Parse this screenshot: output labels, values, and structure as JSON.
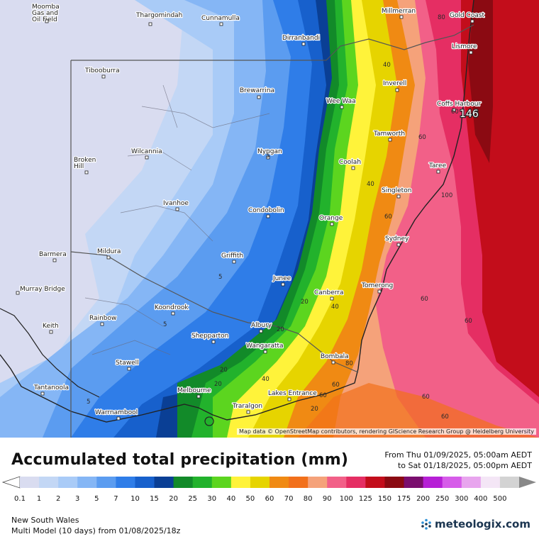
{
  "legend": {
    "title": "Accumulated total precipitation (mm)",
    "range_from": "From Thu 01/09/2025, 05:00am AEDT",
    "range_to": "to Sat 01/18/2025, 05:00pm AEDT",
    "scale": [
      {
        "label": "0.1",
        "color": "#d9dcf0"
      },
      {
        "label": "1",
        "color": "#c3d7f5"
      },
      {
        "label": "2",
        "color": "#a9cbf7"
      },
      {
        "label": "3",
        "color": "#85b6f5"
      },
      {
        "label": "5",
        "color": "#5b9cf0"
      },
      {
        "label": "7",
        "color": "#2f7de8"
      },
      {
        "label": "10",
        "color": "#1760cc"
      },
      {
        "label": "15",
        "color": "#0a3f95"
      },
      {
        "label": "20",
        "color": "#128a29"
      },
      {
        "label": "25",
        "color": "#22b22c"
      },
      {
        "label": "30",
        "color": "#5cd51f"
      },
      {
        "label": "40",
        "color": "#fff33a"
      },
      {
        "label": "50",
        "color": "#e6d400"
      },
      {
        "label": "60",
        "color": "#f08a13"
      },
      {
        "label": "70",
        "color": "#f2701b"
      },
      {
        "label": "80",
        "color": "#f5a27a"
      },
      {
        "label": "90",
        "color": "#f26088"
      },
      {
        "label": "100",
        "color": "#e52e63"
      },
      {
        "label": "125",
        "color": "#c30d1b"
      },
      {
        "label": "150",
        "color": "#8b0a12"
      },
      {
        "label": "175",
        "color": "#7a0e6e"
      },
      {
        "label": "200",
        "color": "#b61fd6"
      },
      {
        "label": "250",
        "color": "#d65ce9"
      },
      {
        "label": "300",
        "color": "#e8a5ee"
      },
      {
        "label": "400",
        "color": "#f4e6f6"
      },
      {
        "label": "500",
        "color": "#d3d3d3"
      }
    ]
  },
  "map": {
    "attribution": "Map data © OpenStreetMap contributors, rendering GIScience Research Group @ Heidelberg University",
    "max_value": "146",
    "places": [
      {
        "name": "Moomba Gas and Oil Field",
        "lines": [
          "Moomba",
          "Gas and",
          "Oil Field"
        ]
      },
      {
        "name": "Thargomindah",
        "lines": [
          "Thargomindah"
        ]
      },
      {
        "name": "Cunnamulla",
        "lines": [
          "Cunnamulla"
        ]
      },
      {
        "name": "Millmerran",
        "lines": [
          "Millmerran"
        ]
      },
      {
        "name": "Gold Coast",
        "lines": [
          "Gold Coast"
        ]
      },
      {
        "name": "Dirranbandi",
        "lines": [
          "Dirranbandi"
        ]
      },
      {
        "name": "Lismore",
        "lines": [
          "Lismore"
        ]
      },
      {
        "name": "Tibooburra",
        "lines": [
          "Tibooburra"
        ]
      },
      {
        "name": "Brewarrina",
        "lines": [
          "Brewarrina"
        ]
      },
      {
        "name": "Inverell",
        "lines": [
          "Inverell"
        ]
      },
      {
        "name": "Wee Waa",
        "lines": [
          "Wee Waa"
        ]
      },
      {
        "name": "Coffs Harbour",
        "lines": [
          "Coffs Harbour"
        ]
      },
      {
        "name": "Tamworth",
        "lines": [
          "Tamworth"
        ]
      },
      {
        "name": "Wilcannia",
        "lines": [
          "Wilcannia"
        ]
      },
      {
        "name": "Nyngan",
        "lines": [
          "Nyngan"
        ]
      },
      {
        "name": "Broken Hill",
        "lines": [
          "Broken",
          "Hill"
        ]
      },
      {
        "name": "Coolah",
        "lines": [
          "Coolah"
        ]
      },
      {
        "name": "Taree",
        "lines": [
          "Taree"
        ]
      },
      {
        "name": "Singleton",
        "lines": [
          "Singleton"
        ]
      },
      {
        "name": "Ivanhoe",
        "lines": [
          "Ivanhoe"
        ]
      },
      {
        "name": "Condobolin",
        "lines": [
          "Condobolin"
        ]
      },
      {
        "name": "Orange",
        "lines": [
          "Orange"
        ]
      },
      {
        "name": "Sydney",
        "lines": [
          "Sydney"
        ]
      },
      {
        "name": "Barmera",
        "lines": [
          "Barmera"
        ]
      },
      {
        "name": "Mildura",
        "lines": [
          "Mildura"
        ]
      },
      {
        "name": "Griffith",
        "lines": [
          "Griffith"
        ]
      },
      {
        "name": "Junee",
        "lines": [
          "Junee"
        ]
      },
      {
        "name": "Murray Bridge",
        "lines": [
          "Murray Bridge"
        ]
      },
      {
        "name": "Canberra",
        "lines": [
          "Canberra"
        ]
      },
      {
        "name": "Tomerong",
        "lines": [
          "Tomerong"
        ]
      },
      {
        "name": "Koondrook",
        "lines": [
          "Koondrook"
        ]
      },
      {
        "name": "Rainbow",
        "lines": [
          "Rainbow"
        ]
      },
      {
        "name": "Keith",
        "lines": [
          "Keith"
        ]
      },
      {
        "name": "Albury",
        "lines": [
          "Albury"
        ]
      },
      {
        "name": "Shepparton",
        "lines": [
          "Shepparton"
        ]
      },
      {
        "name": "Wangaratta",
        "lines": [
          "Wangaratta"
        ]
      },
      {
        "name": "Bombala",
        "lines": [
          "Bombala"
        ]
      },
      {
        "name": "Stawell",
        "lines": [
          "Stawell"
        ]
      },
      {
        "name": "Melbourne",
        "lines": [
          "Melbourne"
        ]
      },
      {
        "name": "Lakes Entrance",
        "lines": [
          "Lakes Entrance"
        ]
      },
      {
        "name": "Tantanoola",
        "lines": [
          "Tantanoola"
        ]
      },
      {
        "name": "Traralgon",
        "lines": [
          "Traralgon"
        ]
      },
      {
        "name": "Warrnambool",
        "lines": [
          "Warrnambool"
        ]
      }
    ],
    "isolines": [
      "80",
      "40",
      "60",
      "60",
      "40",
      "60",
      "60",
      "100",
      "5",
      "5",
      "20",
      "40",
      "80",
      "5",
      "60",
      "60",
      "20",
      "40",
      "20",
      "60",
      "5",
      "20",
      "20",
      "60",
      "60"
    ]
  },
  "footer": {
    "region": "New South Wales",
    "model": "Multi Model (10 days) from  01/08/2025/18z",
    "brand": "meteologix.com"
  }
}
